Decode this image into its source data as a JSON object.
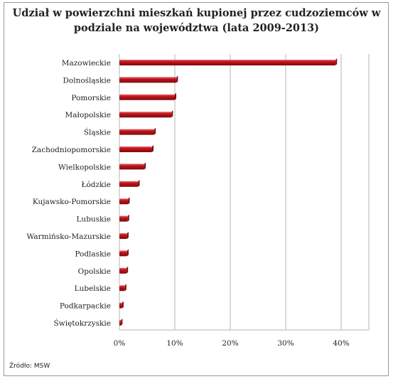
{
  "title_line1": "Udział w powierzchni mieszkań kupionej przez cudzoziemców w",
  "title_line2": "podziale na województwa (lata 2009-2013)",
  "source": "Źródło: MSW",
  "colors": {
    "bar": "#c0151b",
    "bar_dark": "#7d0a0e",
    "grid": "#b5b5b5"
  },
  "chart_data": {
    "type": "bar",
    "orientation": "horizontal",
    "categories": [
      "Mazowieckie",
      "Dolnośląskie",
      "Pomorskie",
      "Małopolskie",
      "Śląskie",
      "Zachodniopomorskie",
      "Wielkopolskie",
      "Łódzkie",
      "Kujawsko-Pomorskie",
      "Lubuskie",
      "Warmińsko-Mazurskie",
      "Podlaskie",
      "Opolskie",
      "Lubelskie",
      "Podkarpackie",
      "Świętokrzyskie"
    ],
    "values": [
      39.0,
      10.3,
      10.0,
      9.4,
      6.3,
      5.9,
      4.5,
      3.4,
      1.6,
      1.5,
      1.4,
      1.4,
      1.3,
      1.0,
      0.5,
      0.3
    ],
    "xlim": [
      0,
      45
    ],
    "ticks": [
      0,
      10,
      20,
      30,
      40
    ],
    "tick_labels": [
      "0%",
      "10%",
      "20%",
      "30%",
      "40%"
    ],
    "grid": true,
    "legend": "none"
  }
}
